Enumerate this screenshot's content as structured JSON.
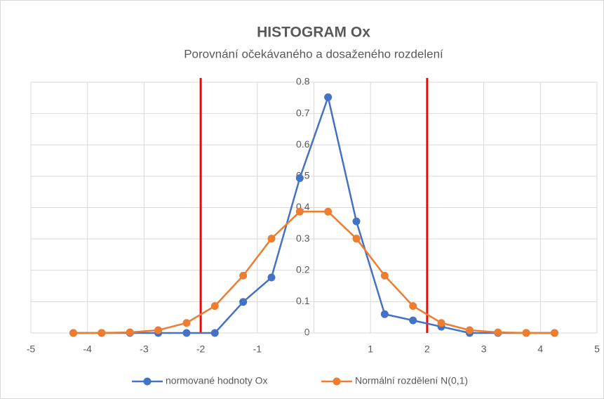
{
  "chart_data": {
    "type": "line",
    "title": "HISTOGRAM Ox",
    "subtitle": "Porovnání očekávaného a dosaženého rozdelení",
    "x": [
      -4.25,
      -3.75,
      -3.25,
      -2.75,
      -2.25,
      -1.75,
      -1.25,
      -0.75,
      -0.25,
      0.25,
      0.75,
      1.25,
      1.75,
      2.25,
      2.75,
      3.25,
      3.75,
      4.25
    ],
    "series": [
      {
        "name": "normované hodnoty Ox",
        "color": "#4472c4",
        "values": [
          0,
          0,
          0,
          0,
          0,
          0,
          0.099,
          0.177,
          0.494,
          0.752,
          0.356,
          0.06,
          0.04,
          0.02,
          0,
          0,
          0,
          0
        ]
      },
      {
        "name": "Normální rozdělení N(0,1)",
        "color": "#ed7d31",
        "values": [
          0,
          0.0004,
          0.002,
          0.009,
          0.032,
          0.086,
          0.183,
          0.301,
          0.387,
          0.387,
          0.301,
          0.183,
          0.086,
          0.032,
          0.009,
          0.002,
          0.0004,
          0
        ]
      }
    ],
    "vlines": [
      -2,
      2
    ],
    "vline_color": "#ff0000",
    "xlim": [
      -5,
      5
    ],
    "xticks": [
      -5,
      -4,
      -3,
      -2,
      -1,
      1,
      2,
      3,
      4,
      5
    ],
    "ylim": [
      0,
      0.8
    ],
    "yticks": [
      0,
      0.1,
      0.2,
      0.3,
      0.4,
      0.5,
      0.6,
      0.7,
      0.8
    ],
    "grid": true,
    "legend": "bottom"
  }
}
